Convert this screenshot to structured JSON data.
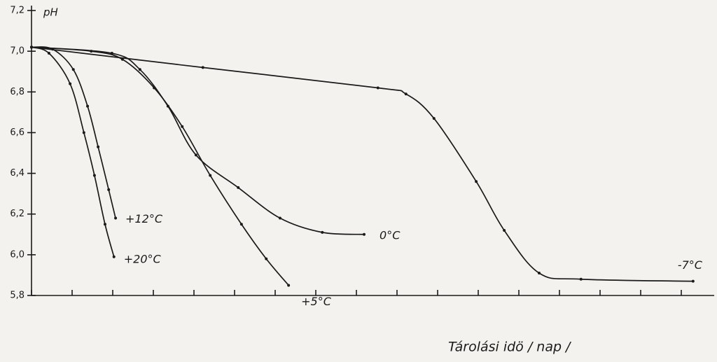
{
  "chart_data": {
    "type": "line",
    "y_label": "pH",
    "x_label": "Tárolási idö / nap /",
    "xlim": [
      0,
      17
    ],
    "xticks": [
      0,
      1,
      2,
      3,
      4,
      5,
      6,
      7,
      8,
      9,
      10,
      11,
      12,
      13,
      14,
      15,
      16
    ],
    "ylim": [
      5.8,
      7.2
    ],
    "yticks": [
      {
        "value": 5.8,
        "label": "5,8"
      },
      {
        "value": 6.0,
        "label": "6,0"
      },
      {
        "value": 6.2,
        "label": "6,2"
      },
      {
        "value": 6.4,
        "label": "6,4"
      },
      {
        "value": 6.6,
        "label": "6,6"
      },
      {
        "value": 6.8,
        "label": "6,8"
      },
      {
        "value": 7.0,
        "label": "7,0"
      },
      {
        "value": 7.2,
        "label": "7,2"
      }
    ],
    "series": [
      {
        "name": "+12°C",
        "color": "#1a1a1a",
        "x": [
          0,
          0.52,
          1.03,
          1.38,
          1.64,
          1.9,
          2.07
        ],
        "values": [
          7.02,
          7.01,
          6.91,
          6.73,
          6.53,
          6.32,
          6.18
        ]
      },
      {
        "name": "+20°C",
        "color": "#1a1a1a",
        "x": [
          0,
          0.43,
          0.95,
          1.29,
          1.55,
          1.81,
          2.03
        ],
        "values": [
          7.02,
          6.99,
          6.84,
          6.6,
          6.39,
          6.15,
          5.99
        ]
      },
      {
        "name": "0°C",
        "color": "#1a1a1a",
        "x": [
          0,
          1.98,
          2.67,
          3.36,
          4.05,
          5.09,
          6.12,
          7.16,
          8.19
        ],
        "values": [
          7.02,
          6.99,
          6.91,
          6.73,
          6.49,
          6.33,
          6.18,
          6.11,
          6.1
        ]
      },
      {
        "name": "+5°C",
        "color": "#1a1a1a",
        "x": [
          0,
          1.47,
          2.24,
          3.02,
          3.71,
          4.4,
          5.17,
          5.78,
          6.33
        ],
        "values": [
          7.02,
          7.0,
          6.96,
          6.82,
          6.63,
          6.39,
          6.15,
          5.98,
          5.85
        ]
      },
      {
        "name": "-7°C",
        "color": "#1a1a1a",
        "x": [
          0,
          4.22,
          8.53,
          9.22,
          9.91,
          10.95,
          11.64,
          12.5,
          13.53,
          16.29
        ],
        "values": [
          7.02,
          6.92,
          6.82,
          6.79,
          6.67,
          6.36,
          6.12,
          5.91,
          5.88,
          5.87
        ]
      }
    ]
  }
}
